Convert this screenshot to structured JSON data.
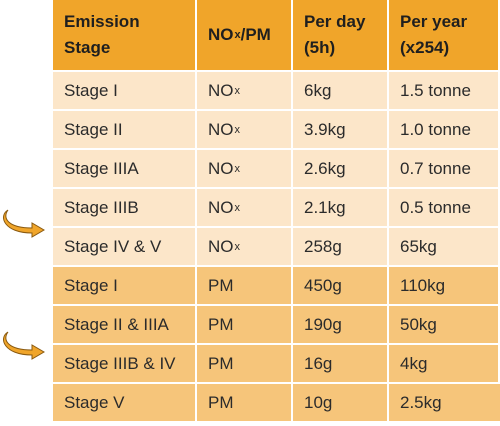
{
  "table": {
    "headers": [
      {
        "text": "Emission\nStage"
      },
      {
        "base": "NO",
        "sub": "x",
        "rest": "/PM"
      },
      {
        "text": "Per day\n(5h)"
      },
      {
        "text": "Per year\n(x254)"
      }
    ],
    "rows": [
      {
        "stage": "Stage I",
        "pollutant": "NO",
        "pollutant_sub": "x",
        "per_day": "6kg",
        "per_year": "1.5 tonne",
        "group": "nox"
      },
      {
        "stage": "Stage II",
        "pollutant": "NO",
        "pollutant_sub": "x",
        "per_day": "3.9kg",
        "per_year": "1.0 tonne",
        "group": "nox"
      },
      {
        "stage": "Stage IIIA",
        "pollutant": "NO",
        "pollutant_sub": "x",
        "per_day": "2.6kg",
        "per_year": "0.7 tonne",
        "group": "nox"
      },
      {
        "stage": "Stage IIIB",
        "pollutant": "NO",
        "pollutant_sub": "x",
        "per_day": "2.1kg",
        "per_year": "0.5 tonne",
        "group": "nox"
      },
      {
        "stage": "Stage IV & V",
        "pollutant": "NO",
        "pollutant_sub": "x",
        "per_day": "258g",
        "per_year": "65kg",
        "group": "nox"
      },
      {
        "stage": "Stage I",
        "pollutant": "PM",
        "pollutant_sub": "",
        "per_day": "450g",
        "per_year": "110kg",
        "group": "pm"
      },
      {
        "stage": "Stage II & IIIA",
        "pollutant": "PM",
        "pollutant_sub": "",
        "per_day": "190g",
        "per_year": "50kg",
        "group": "pm"
      },
      {
        "stage": "Stage IIIB & IV",
        "pollutant": "PM",
        "pollutant_sub": "",
        "per_day": "16g",
        "per_year": "4kg",
        "group": "pm"
      },
      {
        "stage": "Stage V",
        "pollutant": "PM",
        "pollutant_sub": "",
        "per_day": "10g",
        "per_year": "2.5kg",
        "group": "pm"
      }
    ]
  },
  "arrows": [
    {
      "icon": "curved-arrow-right-icon",
      "between_rows": [
        "Stage IIIB",
        "Stage IV & V"
      ]
    },
    {
      "icon": "curved-arrow-right-icon",
      "between_rows": [
        "Stage II & IIIA",
        "Stage IIIB & IV"
      ]
    }
  ],
  "colors": {
    "header": "#f0a52a",
    "nox_rows": "#fce6c9",
    "pm_rows": "#f6c57a",
    "arrow": "#f0a52a"
  }
}
